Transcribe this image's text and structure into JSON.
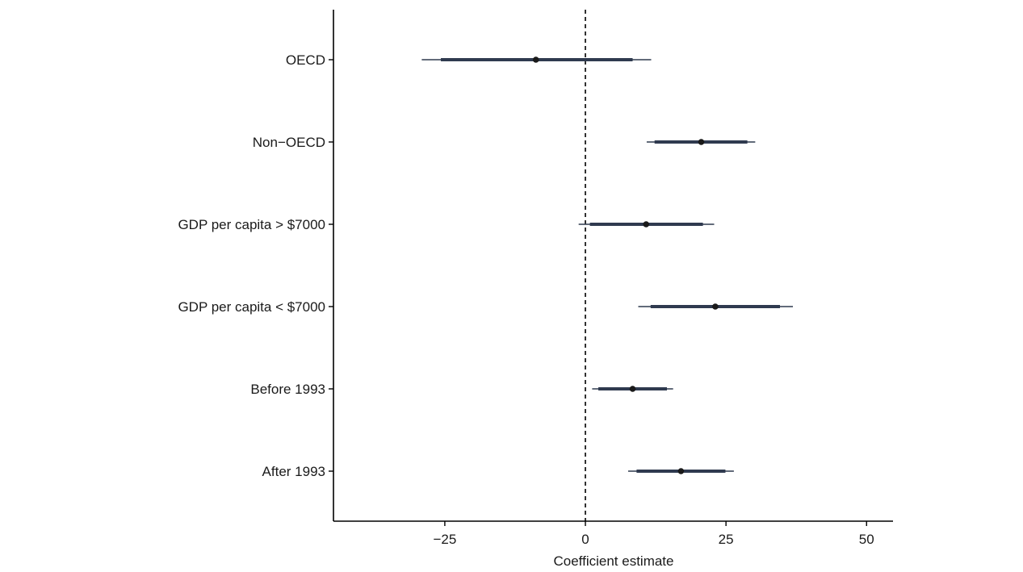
{
  "chart_data": {
    "type": "coefficient_plot",
    "xlabel": "Coefficient estimate",
    "xlim": [
      -44.8,
      54.7
    ],
    "xticks": [
      -25,
      0,
      25,
      50
    ],
    "xtick_labels": [
      "−25",
      "0",
      "25",
      "50"
    ],
    "reference_line": 0,
    "grid": false,
    "legend": "none",
    "colors": {
      "interval": "#2f3a4f",
      "point": "#1a1a1a",
      "axis": "#000000"
    },
    "rows": [
      {
        "label": "OECD",
        "estimate": -8.8,
        "ci_inner": [
          -25.7,
          8.4
        ],
        "ci_outer": [
          -29.1,
          11.7
        ]
      },
      {
        "label": "Non−OECD",
        "estimate": 20.6,
        "ci_inner": [
          12.3,
          28.8
        ],
        "ci_outer": [
          10.9,
          30.2
        ]
      },
      {
        "label": "GDP per capita > $7000",
        "estimate": 10.8,
        "ci_inner": [
          0.8,
          20.9
        ],
        "ci_outer": [
          -1.2,
          22.9
        ]
      },
      {
        "label": "GDP per capita < $7000",
        "estimate": 23.1,
        "ci_inner": [
          11.6,
          34.6
        ],
        "ci_outer": [
          9.4,
          36.9
        ]
      },
      {
        "label": "Before 1993",
        "estimate": 8.4,
        "ci_inner": [
          2.3,
          14.5
        ],
        "ci_outer": [
          1.2,
          15.6
        ]
      },
      {
        "label": "After 1993",
        "estimate": 17.0,
        "ci_inner": [
          9.1,
          24.9
        ],
        "ci_outer": [
          7.6,
          26.4
        ]
      }
    ]
  }
}
